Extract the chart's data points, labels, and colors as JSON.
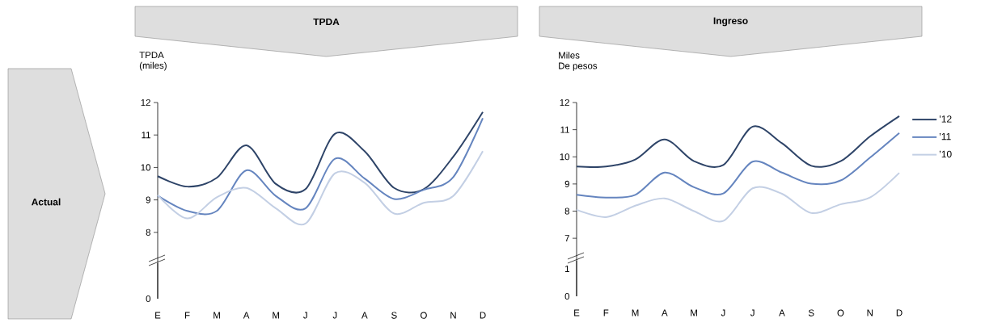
{
  "chart_data": [
    {
      "type": "line",
      "title": "TPDA",
      "ylabel": "TPDA (miles)",
      "annotations": [
        "Actual"
      ],
      "categories": [
        "E",
        "F",
        "M",
        "A",
        "M",
        "J",
        "J",
        "A",
        "S",
        "O",
        "N",
        "D"
      ],
      "ylim": [
        5.956,
        12
      ],
      "yticks": [
        8,
        9,
        10,
        11,
        12
      ],
      "series": [
        {
          "color": "#2e4468",
          "values": [
            9.73,
            9.41,
            9.68,
            10.68,
            9.49,
            9.33,
            11.04,
            10.5,
            9.37,
            9.33,
            10.33,
            11.71
          ]
        },
        {
          "color": "#6585bf",
          "values": [
            9.13,
            8.66,
            8.66,
            9.91,
            9.12,
            8.74,
            10.27,
            9.66,
            9.03,
            9.31,
            9.7,
            11.52
          ]
        },
        {
          "color": "#c3cfe4",
          "values": [
            9.15,
            8.43,
            9.08,
            9.37,
            8.74,
            8.27,
            9.82,
            9.53,
            8.58,
            8.91,
            9.12,
            10.5
          ]
        }
      ]
    },
    {
      "type": "other",
      "annotations": [
        "0"
      ]
    },
    {
      "type": "line",
      "title": "Ingreso",
      "ylabel": "Miles De pesos",
      "legend": "right",
      "categories": [
        "E",
        "F",
        "M",
        "A",
        "M",
        "J",
        "J",
        "A",
        "S",
        "O",
        "N",
        "D"
      ],
      "ylim": [
        4.863,
        12
      ],
      "yticks": [
        7,
        8,
        9,
        10,
        11,
        12
      ],
      "series": [
        {
          "name": "’12",
          "color": "#2e4468",
          "values": [
            9.64,
            9.64,
            9.9,
            10.64,
            9.84,
            9.7,
            11.11,
            10.5,
            9.67,
            9.84,
            10.75,
            11.5
          ]
        },
        {
          "name": "’11",
          "color": "#6585bf",
          "values": [
            8.6,
            8.5,
            8.6,
            9.42,
            8.88,
            8.65,
            9.82,
            9.42,
            9.01,
            9.13,
            9.97,
            10.88
          ]
        },
        {
          "name": "’10",
          "color": "#c3cfe4",
          "values": [
            8.05,
            7.78,
            8.2,
            8.47,
            8.0,
            7.64,
            8.84,
            8.64,
            7.93,
            8.25,
            8.5,
            9.41
          ]
        }
      ]
    },
    {
      "type": "other",
      "annotations": [
        "0",
        "1"
      ]
    }
  ]
}
